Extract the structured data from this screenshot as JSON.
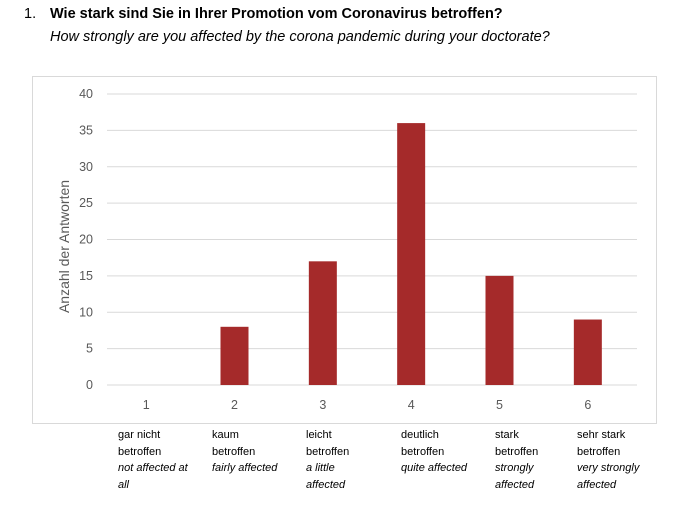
{
  "question": {
    "number": "1.",
    "title": "Wie stark sind Sie in Ihrer Promotion vom Coronavirus betroffen?",
    "subtitle": "How strongly are you affected by the corona pandemic during your doctorate?"
  },
  "chart_data": {
    "type": "bar",
    "categories": [
      "1",
      "2",
      "3",
      "4",
      "5",
      "6"
    ],
    "values": [
      0,
      8,
      17,
      36,
      15,
      9
    ],
    "ylabel": "Anzahl der Antworten",
    "xlabel": "",
    "ylim": [
      0,
      40
    ],
    "yticks": [
      0,
      5,
      10,
      15,
      20,
      25,
      30,
      35,
      40
    ],
    "grid": true,
    "bar_color": "#a52a2a",
    "category_labels": [
      {
        "de": "gar nicht betroffen",
        "en": "not affected at all"
      },
      {
        "de": "kaum betroffen",
        "en": "fairly affected"
      },
      {
        "de": "leicht betroffen",
        "en": "a little affected"
      },
      {
        "de": "deutlich betroffen",
        "en": "quite affected"
      },
      {
        "de": "stark betroffen",
        "en": "strongly affected"
      },
      {
        "de": "sehr stark betroffen",
        "en": "very strongly affected"
      }
    ]
  }
}
